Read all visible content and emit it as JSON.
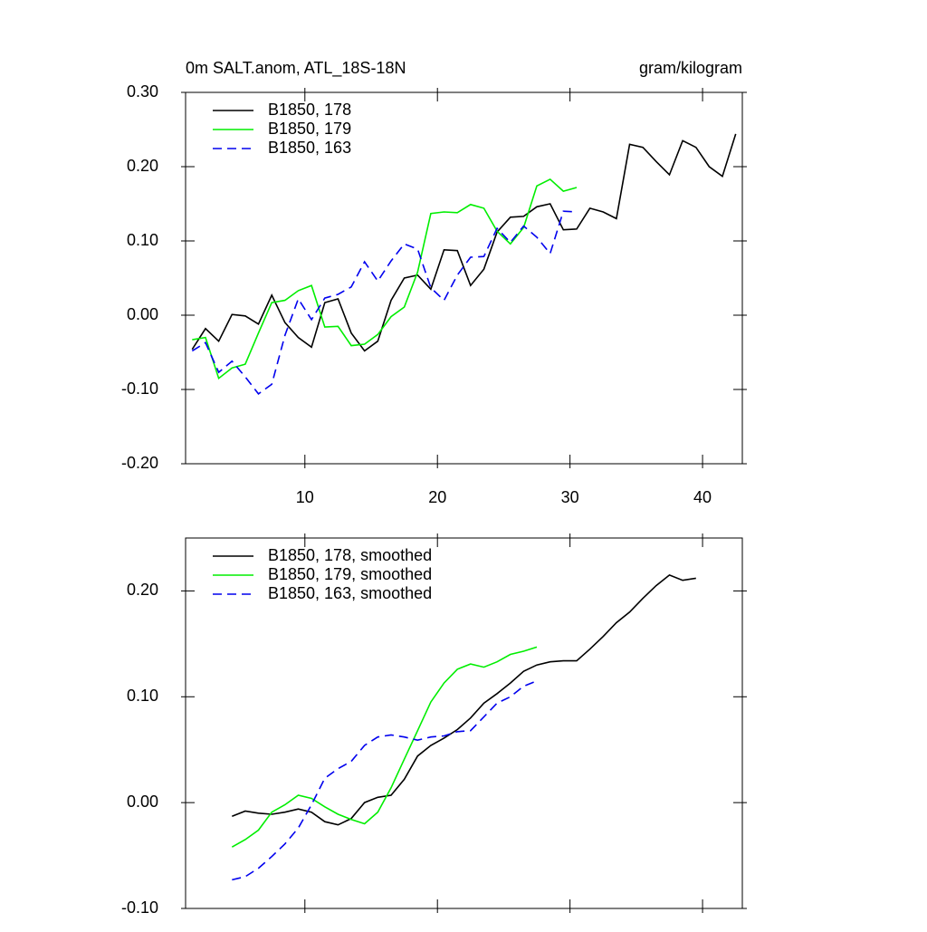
{
  "chart_data": [
    {
      "type": "line",
      "title_left": "0m SALT.anom, ATL_18S-18N",
      "title_right": "gram/kilogram",
      "x": [
        1.5,
        2.5,
        3.5,
        4.5,
        5.5,
        6.5,
        7.5,
        8.5,
        9.5,
        10.5,
        11.5,
        12.5,
        13.5,
        14.5,
        15.5,
        16.5,
        17.5,
        18.5,
        19.5,
        20.5,
        21.5,
        22.5,
        23.5,
        24.5,
        25.5,
        26.5,
        27.5,
        28.5,
        29.5,
        30.5,
        31.5,
        32.5,
        33.5,
        34.5,
        35.5,
        36.5,
        37.5,
        38.5,
        39.5,
        40.5,
        41.5,
        42.5
      ],
      "xlim": [
        1,
        43
      ],
      "xticks": [
        10,
        20,
        30,
        40
      ],
      "ylim": [
        -0.2,
        0.3
      ],
      "yticks": [
        {
          "value": -0.2,
          "label": "-0.20"
        },
        {
          "value": -0.1,
          "label": "-0.10"
        },
        {
          "value": 0,
          "label": "0.00"
        },
        {
          "value": 0.1,
          "label": "0.10"
        },
        {
          "value": 0.2,
          "label": "0.20"
        },
        {
          "value": 0.3,
          "label": "0.30"
        }
      ],
      "legend": "upper left",
      "series": [
        {
          "name": "B1850, 178",
          "color": "#000000",
          "dashed": false,
          "values": [
            -0.046,
            -0.018,
            -0.035,
            0.001,
            -0.001,
            -0.012,
            0.027,
            -0.01,
            -0.03,
            -0.043,
            0.017,
            0.022,
            -0.024,
            -0.048,
            -0.035,
            0.02,
            0.05,
            0.054,
            0.035,
            0.088,
            0.087,
            0.04,
            0.062,
            0.112,
            0.132,
            0.133,
            0.146,
            0.15,
            0.115,
            0.116,
            0.144,
            0.139,
            0.13,
            0.23,
            0.226,
            0.207,
            0.189,
            0.235,
            0.226,
            0.2,
            0.187,
            0.244
          ]
        },
        {
          "name": "B1850, 179",
          "color": "#00ee00",
          "dashed": false,
          "values": [
            -0.033,
            -0.03,
            -0.085,
            -0.071,
            -0.066,
            -0.024,
            0.017,
            0.02,
            0.033,
            0.04,
            -0.016,
            -0.015,
            -0.041,
            -0.039,
            -0.026,
            -0.002,
            0.011,
            0.058,
            0.137,
            0.139,
            0.138,
            0.149,
            0.144,
            0.113,
            0.096,
            0.118,
            0.174,
            0.183,
            0.167,
            0.172,
            null,
            null,
            null,
            null,
            null,
            null,
            null,
            null,
            null,
            null,
            null,
            null
          ]
        },
        {
          "name": "B1850, 163",
          "color": "#0000ee",
          "dashed": true,
          "values": [
            -0.048,
            -0.037,
            -0.077,
            -0.062,
            -0.083,
            -0.106,
            -0.093,
            -0.027,
            0.022,
            -0.006,
            0.023,
            0.028,
            0.038,
            0.072,
            0.046,
            0.073,
            0.096,
            0.089,
            0.037,
            0.02,
            0.054,
            0.078,
            0.079,
            0.117,
            0.098,
            0.12,
            0.105,
            0.083,
            0.14,
            0.139,
            null,
            null,
            null,
            null,
            null,
            null,
            null,
            null,
            null,
            null,
            null,
            null
          ]
        }
      ]
    },
    {
      "type": "line",
      "x": [
        4.5,
        5.5,
        6.5,
        7.5,
        8.5,
        9.5,
        10.5,
        11.5,
        12.5,
        13.5,
        14.5,
        15.5,
        16.5,
        17.5,
        18.5,
        19.5,
        20.5,
        21.5,
        22.5,
        23.5,
        24.5,
        25.5,
        26.5,
        27.5,
        28.5,
        29.5,
        30.5,
        31.5,
        32.5,
        33.5,
        34.5,
        35.5,
        36.5,
        37.5,
        38.5,
        39.5
      ],
      "xlim": [
        1,
        43
      ],
      "xticks": [
        10,
        20,
        30,
        40
      ],
      "ylim": [
        -0.1,
        0.25
      ],
      "yticks": [
        {
          "value": -0.1,
          "label": "-0.10"
        },
        {
          "value": 0,
          "label": "0.00"
        },
        {
          "value": 0.1,
          "label": "0.10"
        },
        {
          "value": 0.2,
          "label": "0.20"
        }
      ],
      "legend": "upper left",
      "series": [
        {
          "name": "B1850, 178, smoothed",
          "color": "#000000",
          "dashed": false,
          "values": [
            -0.013,
            -0.008,
            -0.01,
            -0.011,
            -0.009,
            -0.006,
            -0.009,
            -0.018,
            -0.021,
            -0.015,
            0.0,
            0.005,
            0.007,
            0.022,
            0.044,
            0.054,
            0.061,
            0.069,
            0.08,
            0.094,
            0.103,
            0.113,
            0.124,
            0.13,
            0.133,
            0.134,
            0.134,
            0.145,
            0.157,
            0.17,
            0.18,
            0.193,
            0.205,
            0.215,
            0.21,
            0.212
          ]
        },
        {
          "name": "B1850, 179, smoothed",
          "color": "#00ee00",
          "dashed": false,
          "values": [
            -0.042,
            -0.035,
            -0.026,
            -0.009,
            -0.002,
            0.007,
            0.004,
            -0.004,
            -0.011,
            -0.016,
            -0.02,
            -0.009,
            0.014,
            0.041,
            0.068,
            0.095,
            0.113,
            0.126,
            0.131,
            0.128,
            0.133,
            0.14,
            0.143,
            0.147,
            null,
            null,
            null,
            null,
            null,
            null,
            null,
            null,
            null,
            null,
            null,
            null
          ]
        },
        {
          "name": "B1850, 163, smoothed",
          "color": "#0000ee",
          "dashed": true,
          "values": [
            -0.073,
            -0.07,
            -0.062,
            -0.051,
            -0.039,
            -0.024,
            -0.002,
            0.023,
            0.032,
            0.039,
            0.054,
            0.062,
            0.064,
            0.062,
            0.059,
            0.062,
            0.063,
            0.067,
            0.068,
            0.081,
            0.094,
            0.1,
            0.11,
            0.115,
            null,
            null,
            null,
            null,
            null,
            null,
            null,
            null,
            null,
            null,
            null,
            null
          ]
        }
      ]
    }
  ]
}
